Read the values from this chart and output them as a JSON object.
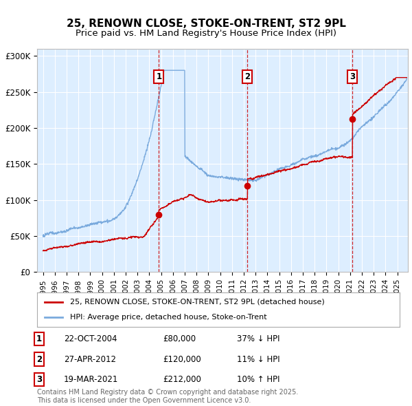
{
  "title": "25, RENOWN CLOSE, STOKE-ON-TRENT, ST2 9PL",
  "subtitle": "Price paid vs. HM Land Registry's House Price Index (HPI)",
  "background_color": "#ffffff",
  "plot_bg_color": "#ddeeff",
  "grid_color": "#ffffff",
  "hpi_color": "#7aaadd",
  "price_color": "#cc0000",
  "vline_color": "#cc0000",
  "sale_events": [
    {
      "label": "1",
      "date_x": 2004.81,
      "price": 80000
    },
    {
      "label": "2",
      "date_x": 2012.32,
      "price": 120000
    },
    {
      "label": "3",
      "date_x": 2021.21,
      "price": 212000
    }
  ],
  "legend_entries": [
    {
      "label": "25, RENOWN CLOSE, STOKE-ON-TRENT, ST2 9PL (detached house)",
      "color": "#cc0000"
    },
    {
      "label": "HPI: Average price, detached house, Stoke-on-Trent",
      "color": "#7aaadd"
    }
  ],
  "table_rows": [
    {
      "num": "1",
      "date": "22-OCT-2004",
      "amount": "£80,000",
      "note": "37% ↓ HPI"
    },
    {
      "num": "2",
      "date": "27-APR-2012",
      "amount": "£120,000",
      "note": "11% ↓ HPI"
    },
    {
      "num": "3",
      "date": "19-MAR-2021",
      "amount": "£212,000",
      "note": "10% ↑ HPI"
    }
  ],
  "footnote": "Contains HM Land Registry data © Crown copyright and database right 2025.\nThis data is licensed under the Open Government Licence v3.0.",
  "ylim": [
    0,
    310000
  ],
  "xlim": [
    1994.5,
    2025.9
  ],
  "yticks": [
    0,
    50000,
    100000,
    150000,
    200000,
    250000,
    300000
  ],
  "ytick_labels": [
    "£0",
    "£50K",
    "£100K",
    "£150K",
    "£200K",
    "£250K",
    "£300K"
  ]
}
